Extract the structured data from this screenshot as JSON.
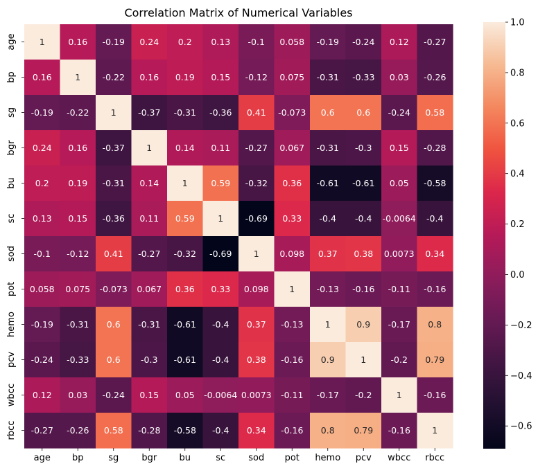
{
  "chart_data": {
    "type": "heatmap",
    "title": "Correlation Matrix of Numerical Variables",
    "x_labels": [
      "age",
      "bp",
      "sg",
      "bgr",
      "bu",
      "sc",
      "sod",
      "pot",
      "hemo",
      "pcv",
      "wbcc",
      "rbcc"
    ],
    "y_labels": [
      "age",
      "bp",
      "sg",
      "bgr",
      "bu",
      "sc",
      "sod",
      "pot",
      "hemo",
      "pcv",
      "wbcc",
      "rbcc"
    ],
    "values": [
      [
        "1",
        "0.16",
        "-0.19",
        "0.24",
        "0.2",
        "0.13",
        "-0.1",
        "0.058",
        "-0.19",
        "-0.24",
        "0.12",
        "-0.27"
      ],
      [
        "0.16",
        "1",
        "-0.22",
        "0.16",
        "0.19",
        "0.15",
        "-0.12",
        "0.075",
        "-0.31",
        "-0.33",
        "0.03",
        "-0.26"
      ],
      [
        "-0.19",
        "-0.22",
        "1",
        "-0.37",
        "-0.31",
        "-0.36",
        "0.41",
        "-0.073",
        "0.6",
        "0.6",
        "-0.24",
        "0.58"
      ],
      [
        "0.24",
        "0.16",
        "-0.37",
        "1",
        "0.14",
        "0.11",
        "-0.27",
        "0.067",
        "-0.31",
        "-0.3",
        "0.15",
        "-0.28"
      ],
      [
        "0.2",
        "0.19",
        "-0.31",
        "0.14",
        "1",
        "0.59",
        "-0.32",
        "0.36",
        "-0.61",
        "-0.61",
        "0.05",
        "-0.58"
      ],
      [
        "0.13",
        "0.15",
        "-0.36",
        "0.11",
        "0.59",
        "1",
        "-0.69",
        "0.33",
        "-0.4",
        "-0.4",
        "-0.0064",
        "-0.4"
      ],
      [
        "-0.1",
        "-0.12",
        "0.41",
        "-0.27",
        "-0.32",
        "-0.69",
        "1",
        "0.098",
        "0.37",
        "0.38",
        "0.0073",
        "0.34"
      ],
      [
        "0.058",
        "0.075",
        "-0.073",
        "0.067",
        "0.36",
        "0.33",
        "0.098",
        "1",
        "-0.13",
        "-0.16",
        "-0.11",
        "-0.16"
      ],
      [
        "-0.19",
        "-0.31",
        "0.6",
        "-0.31",
        "-0.61",
        "-0.4",
        "0.37",
        "-0.13",
        "1",
        "0.9",
        "-0.17",
        "0.8"
      ],
      [
        "-0.24",
        "-0.33",
        "0.6",
        "-0.3",
        "-0.61",
        "-0.4",
        "0.38",
        "-0.16",
        "0.9",
        "1",
        "-0.2",
        "0.79"
      ],
      [
        "0.12",
        "0.03",
        "-0.24",
        "0.15",
        "0.05",
        "-0.0064",
        "0.0073",
        "-0.11",
        "-0.17",
        "-0.2",
        "1",
        "-0.16"
      ],
      [
        "-0.27",
        "-0.26",
        "0.58",
        "-0.28",
        "-0.58",
        "-0.4",
        "0.34",
        "-0.16",
        "0.8",
        "0.79",
        "-0.16",
        "1"
      ]
    ],
    "vmin": -0.69,
    "vmax": 1.0,
    "colormap": "rocket",
    "colorbar_ticks": [
      "1.0",
      "0.8",
      "0.6",
      "0.4",
      "0.2",
      "0.0",
      "−0.2",
      "−0.4",
      "−0.6"
    ],
    "colorbar_tick_values": [
      1.0,
      0.8,
      0.6,
      0.4,
      0.2,
      0.0,
      -0.2,
      -0.4,
      -0.6
    ],
    "annotated": true,
    "grid": false,
    "colorbar_placement": "right"
  }
}
